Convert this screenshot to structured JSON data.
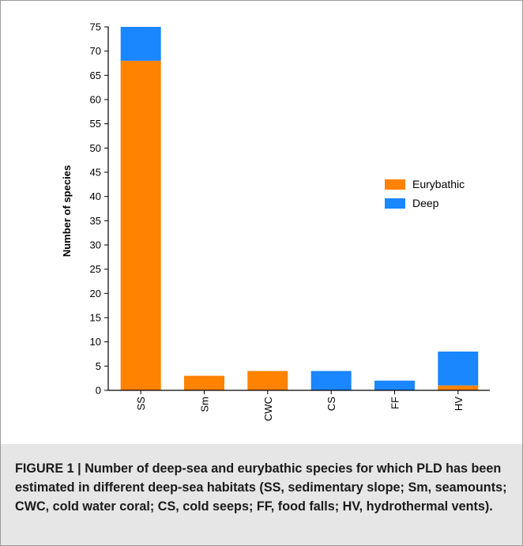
{
  "chart_data": {
    "type": "bar",
    "stacked": true,
    "categories": [
      "SS",
      "Sm",
      "CWC",
      "CS",
      "FF",
      "HV"
    ],
    "series": [
      {
        "name": "Eurybathic",
        "color": "#ff8200",
        "values": [
          68,
          3,
          4,
          0,
          0,
          1
        ]
      },
      {
        "name": "Deep",
        "color": "#1a86ff",
        "values": [
          7,
          0,
          0,
          4,
          2,
          7
        ]
      }
    ],
    "ylabel": "Number of species",
    "xlabel": "",
    "ylim": [
      0,
      75
    ],
    "yticks": [
      0,
      5,
      10,
      15,
      20,
      25,
      30,
      35,
      40,
      45,
      50,
      55,
      60,
      65,
      70,
      75
    ],
    "grid": false,
    "legend_position": "right"
  },
  "caption": {
    "label": "FIGURE 1 | ",
    "text": "Number of deep-sea and eurybathic species for which PLD has been estimated in different deep-sea habitats (SS, sedimentary slope; Sm, seamounts; CWC, cold water coral; CS, cold seeps; FF, food falls; HV, hydrothermal vents)."
  }
}
